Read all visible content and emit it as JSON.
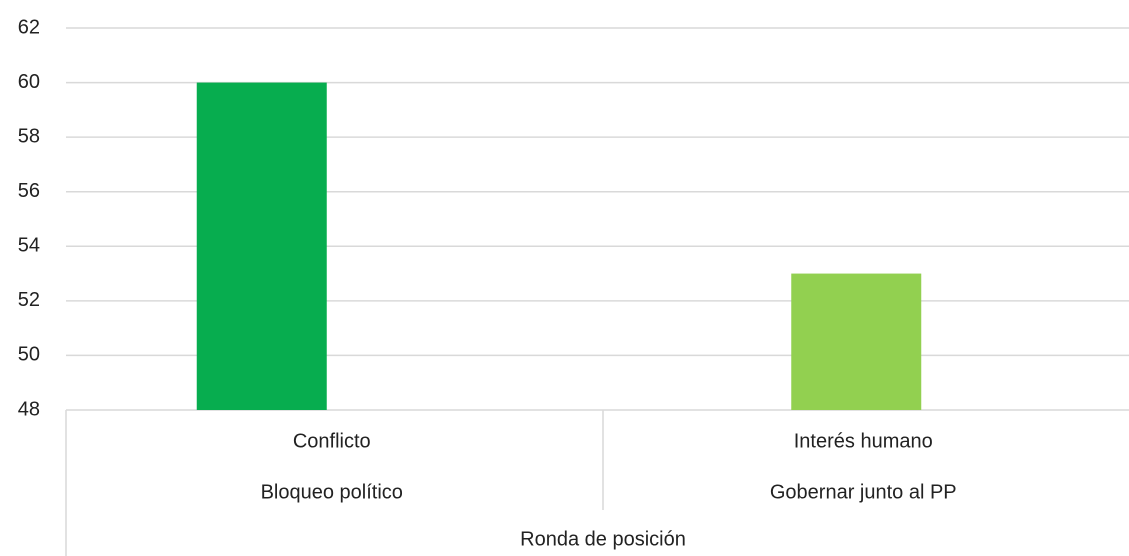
{
  "chart_data": {
    "type": "bar",
    "categories": [
      "Conflicto",
      "Interés humano"
    ],
    "subcategories": [
      "Bloqueo político",
      "Gobernar junto al PP"
    ],
    "group": "Ronda de posición",
    "values": [
      60,
      53
    ],
    "colors": [
      "#07ad4f",
      "#92d050"
    ],
    "ylim": [
      48,
      62
    ],
    "yticks": [
      48,
      50,
      52,
      54,
      56,
      58,
      60,
      62
    ],
    "grid": true
  }
}
